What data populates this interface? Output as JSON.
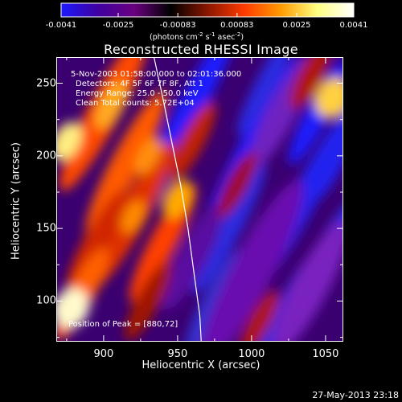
{
  "colorbar": {
    "ticks": [
      "-0.0041",
      "-0.0025",
      "-0.00083",
      "0.00083",
      "0.0025",
      "0.0041"
    ],
    "tick_values": [
      -0.0041,
      -0.0025,
      -0.00083,
      0.00083,
      0.0025,
      0.0041
    ],
    "unit_prefix": "(photons cm",
    "unit_sup1": "-2",
    "unit_mid": " s",
    "unit_sup2": "-1",
    "unit_mid2": " asec",
    "unit_sup3": "-2",
    "unit_suffix": ")",
    "colormap": [
      "#1a1aff",
      "#3f00a0",
      "#6a0080",
      "#000000",
      "#8a1600",
      "#ff3a00",
      "#ff9a00",
      "#ffff80",
      "#ffffff"
    ]
  },
  "chart_data": {
    "type": "heatmap",
    "title": "Reconstructed RHESSI Image",
    "xlabel": "Heliocentric X (arcsec)",
    "ylabel": "Heliocentric Y (arcsec)",
    "x_ticks": [
      900,
      950,
      1000,
      1050
    ],
    "y_ticks": [
      100,
      150,
      200,
      250
    ],
    "xlim": [
      868,
      1062
    ],
    "ylim": [
      72,
      268
    ],
    "vlim": [
      -0.0041,
      0.0041
    ],
    "limb_curve": [
      [
        934,
        268
      ],
      [
        940,
        240
      ],
      [
        946,
        210
      ],
      [
        952,
        180
      ],
      [
        957,
        150
      ],
      [
        961,
        120
      ],
      [
        965,
        90
      ],
      [
        966,
        72
      ]
    ],
    "annotations": {
      "time": "5-Nov-2003 01:58:00.000 to 02:01:36.000",
      "detectors": "Detectors: 4F 5F 6F 7F 8F, Att 1",
      "energy": "Energy Range: 25.0 - 50.0 keV",
      "clean": "Clean     Total counts: 5.72E+04",
      "peak": "Position of Peak = [880,72]"
    }
  },
  "footer": {
    "date": "27-May-2013 23:18"
  }
}
